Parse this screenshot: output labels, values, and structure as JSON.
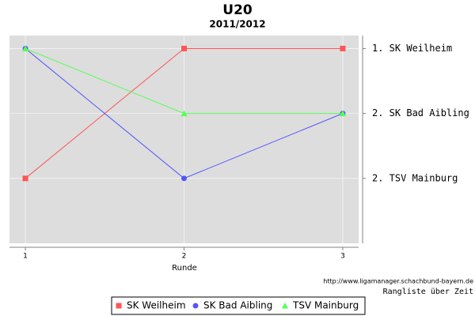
{
  "chart_data": {
    "type": "line",
    "title": "U20",
    "subtitle": "2011/2012",
    "x_label": "Runde",
    "x": [
      1,
      2,
      3
    ],
    "xlim": [
      0.9,
      3.1
    ],
    "xticks": [
      1,
      2,
      3
    ],
    "ylim": [
      4,
      0.8
    ],
    "yticks": [
      {
        "value": 1,
        "label": "1. SK Weilheim"
      },
      {
        "value": 2,
        "label": "2. SK Bad Aibling"
      },
      {
        "value": 3,
        "label": "2. TSV Mainburg"
      }
    ],
    "grid": true,
    "series": [
      {
        "name": "SK Weilheim",
        "color": "#ff5555",
        "marker": "square",
        "values": [
          3,
          1,
          1
        ]
      },
      {
        "name": "SK Bad Aibling",
        "color": "#5555ff",
        "marker": "circle",
        "values": [
          1,
          3,
          2
        ]
      },
      {
        "name": "TSV Mainburg",
        "color": "#55ff55",
        "marker": "triangle",
        "values": [
          1,
          2,
          2
        ]
      }
    ],
    "source": "http://www.ligamanager.schachbund-bayern.de",
    "footer": "Rangliste über Zeit"
  }
}
